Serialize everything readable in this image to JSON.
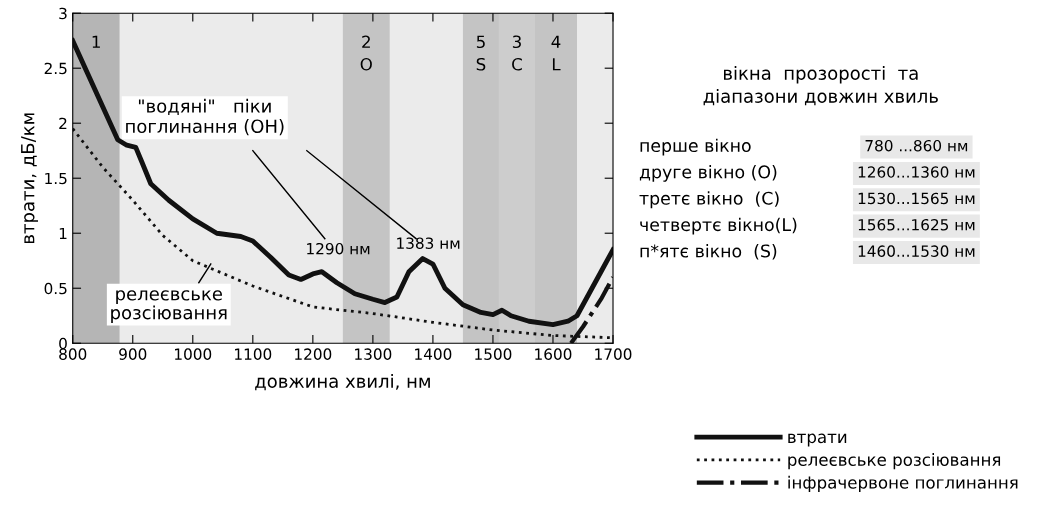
{
  "chart_data": {
    "type": "line",
    "xlabel": "довжина хвилі, нм",
    "ylabel": "втрати, дБ/км",
    "xlim": [
      800,
      1700
    ],
    "xticks": [
      800,
      900,
      1000,
      1100,
      1200,
      1300,
      1400,
      1500,
      1600,
      1700
    ],
    "ylim": [
      0,
      3
    ],
    "yticks": [
      0,
      0.5,
      1,
      1.5,
      2,
      2.5,
      3
    ],
    "grid": false,
    "legend": "bottom right",
    "series": [
      {
        "name": "втрати",
        "color": "#111111",
        "line_style": "solid",
        "x": [
          800,
          825,
          850,
          875,
          890,
          905,
          915,
          930,
          960,
          1000,
          1040,
          1080,
          1100,
          1130,
          1160,
          1180,
          1200,
          1215,
          1240,
          1270,
          1300,
          1320,
          1340,
          1360,
          1383,
          1400,
          1420,
          1450,
          1480,
          1500,
          1515,
          1530,
          1560,
          1600,
          1625,
          1640,
          1660,
          1680,
          1700
        ],
        "values": [
          2.75,
          2.45,
          2.15,
          1.85,
          1.8,
          1.78,
          1.65,
          1.45,
          1.3,
          1.13,
          1.0,
          0.97,
          0.93,
          0.78,
          0.62,
          0.58,
          0.63,
          0.65,
          0.55,
          0.45,
          0.4,
          0.37,
          0.42,
          0.65,
          0.77,
          0.72,
          0.5,
          0.35,
          0.28,
          0.26,
          0.3,
          0.25,
          0.2,
          0.17,
          0.2,
          0.25,
          0.45,
          0.65,
          0.85
        ]
      },
      {
        "name": "релеєвське розсіювання",
        "color": "#111111",
        "line_style": "dotted",
        "x": [
          800,
          850,
          900,
          950,
          1000,
          1100,
          1200,
          1300,
          1400,
          1500,
          1600,
          1700
        ],
        "values": [
          1.95,
          1.6,
          1.3,
          0.98,
          0.75,
          0.52,
          0.33,
          0.27,
          0.19,
          0.12,
          0.07,
          0.05
        ]
      },
      {
        "name": "інфрачервоне поглинання",
        "color": "#111111",
        "line_style": "dashdot",
        "x": [
          1630,
          1650,
          1680,
          1700
        ],
        "values": [
          0,
          0.15,
          0.4,
          0.6
        ]
      }
    ],
    "bands": [
      {
        "axis": "x",
        "from": 800,
        "to": 878,
        "label": "1",
        "color": "#b5b5b5"
      },
      {
        "axis": "x",
        "from": 1250,
        "to": 1328,
        "label": "2\nO",
        "color": "#c4c4c4"
      },
      {
        "axis": "x",
        "from": 1450,
        "to": 1510,
        "label": "5\nS",
        "color": "#c4c4c4"
      },
      {
        "axis": "x",
        "from": 1510,
        "to": 1570,
        "label": "3\nC",
        "color": "#cdcdcd"
      },
      {
        "axis": "x",
        "from": 1570,
        "to": 1640,
        "label": "4\nL",
        "color": "#c4c4c4"
      }
    ],
    "annotations": [
      "\"водяні\"   піки\nпоглинання (OH)",
      "1290 нм",
      "1383 нм",
      "релеєвське\nрозсіювання",
      "вікна  прозорості  та\nдіапазони довжин хвиль",
      "перше вікно",
      "780 ...860 нм",
      "друге вікно (O)",
      "1260...1360 нм",
      "третє вікно  (C)",
      "1530...1565 нм",
      "четвертє вікно(L)",
      "1565...1625 нм",
      "п*ятє вікно  (S)",
      "1460...1530 нм"
    ]
  }
}
